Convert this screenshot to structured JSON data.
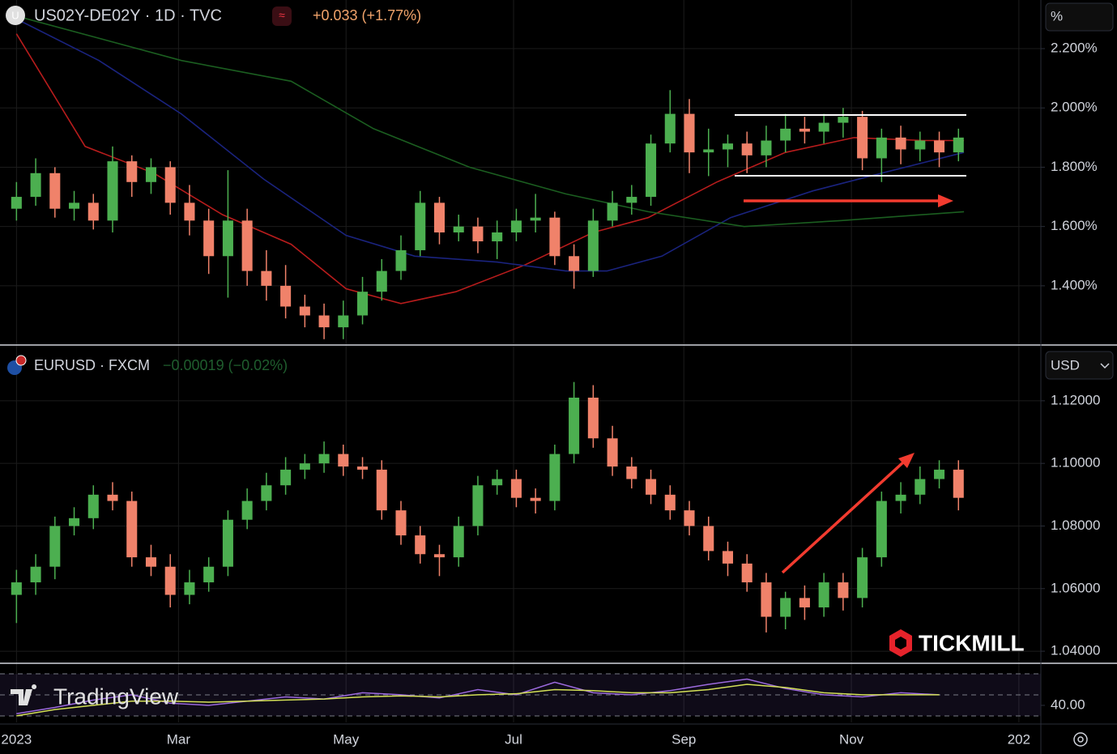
{
  "chart_data": [
    {
      "type": "candlestick",
      "title": "US02Y-DE02Y · 1D · TVC",
      "change": "+0.033 (+1.77%)",
      "unit_label": "%",
      "up_color": "#4caf50",
      "down_color": "#f0826a",
      "grid": true,
      "xlim": [
        -6,
        373
      ],
      "ylim": [
        1.203,
        2.364
      ],
      "yticks": [
        {
          "value": 2.2,
          "label": "2.200%"
        },
        {
          "value": 2.0,
          "label": "2.000%"
        },
        {
          "value": 1.8,
          "label": "1.800%"
        },
        {
          "value": 1.6,
          "label": "1.600%"
        },
        {
          "value": 1.4,
          "label": "1.400%"
        }
      ],
      "x": [
        0,
        7,
        14,
        21,
        28,
        35,
        42,
        49,
        56,
        63,
        70,
        77,
        84,
        91,
        98,
        105,
        112,
        119,
        126,
        133,
        140,
        147,
        154,
        161,
        168,
        175,
        182,
        189,
        196,
        203,
        210,
        217,
        224,
        231,
        238,
        245,
        252,
        259,
        266,
        273,
        280,
        287,
        294,
        301,
        308,
        315,
        322,
        329,
        336,
        343
      ],
      "open": [
        1.66,
        1.7,
        1.78,
        1.66,
        1.68,
        1.62,
        1.82,
        1.75,
        1.8,
        1.68,
        1.62,
        1.5,
        1.62,
        1.45,
        1.4,
        1.33,
        1.3,
        1.26,
        1.3,
        1.38,
        1.45,
        1.52,
        1.68,
        1.58,
        1.6,
        1.55,
        1.58,
        1.62,
        1.63,
        1.5,
        1.45,
        1.62,
        1.68,
        1.7,
        1.88,
        1.98,
        1.85,
        1.86,
        1.88,
        1.84,
        1.89,
        1.93,
        1.92,
        1.95,
        1.97,
        1.83,
        1.9,
        1.86,
        1.89,
        1.85
      ],
      "high": [
        1.75,
        1.83,
        1.8,
        1.72,
        1.71,
        1.87,
        1.84,
        1.83,
        1.82,
        1.74,
        1.66,
        1.79,
        1.66,
        1.52,
        1.47,
        1.37,
        1.34,
        1.35,
        1.43,
        1.49,
        1.57,
        1.72,
        1.7,
        1.64,
        1.63,
        1.62,
        1.66,
        1.71,
        1.65,
        1.54,
        1.66,
        1.72,
        1.74,
        1.91,
        2.06,
        2.03,
        1.93,
        1.91,
        1.92,
        1.94,
        1.98,
        1.97,
        1.98,
        2.0,
        1.99,
        1.93,
        1.94,
        1.92,
        1.92,
        1.93
      ],
      "low": [
        1.62,
        1.67,
        1.63,
        1.62,
        1.59,
        1.58,
        1.7,
        1.71,
        1.64,
        1.57,
        1.44,
        1.36,
        1.4,
        1.35,
        1.29,
        1.26,
        1.22,
        1.22,
        1.27,
        1.35,
        1.42,
        1.5,
        1.54,
        1.55,
        1.51,
        1.49,
        1.55,
        1.58,
        1.47,
        1.39,
        1.43,
        1.6,
        1.64,
        1.67,
        1.85,
        1.78,
        1.77,
        1.8,
        1.78,
        1.8,
        1.85,
        1.88,
        1.88,
        1.9,
        1.79,
        1.75,
        1.81,
        1.82,
        1.8,
        1.82
      ],
      "close": [
        1.7,
        1.78,
        1.66,
        1.68,
        1.62,
        1.82,
        1.75,
        1.8,
        1.68,
        1.62,
        1.5,
        1.62,
        1.45,
        1.4,
        1.33,
        1.3,
        1.26,
        1.3,
        1.38,
        1.45,
        1.52,
        1.68,
        1.58,
        1.6,
        1.55,
        1.58,
        1.62,
        1.63,
        1.5,
        1.45,
        1.62,
        1.68,
        1.7,
        1.88,
        1.98,
        1.85,
        1.86,
        1.88,
        1.84,
        1.89,
        1.93,
        1.92,
        1.95,
        1.97,
        1.83,
        1.9,
        1.86,
        1.89,
        1.85,
        1.9
      ],
      "lines": [
        {
          "color": "#b71c1c",
          "x": [
            0,
            25,
            50,
            75,
            100,
            120,
            140,
            160,
            185,
            210,
            230,
            255,
            280,
            305,
            330,
            345
          ],
          "values": [
            2.25,
            1.87,
            1.78,
            1.64,
            1.54,
            1.39,
            1.34,
            1.38,
            1.47,
            1.58,
            1.63,
            1.75,
            1.85,
            1.9,
            1.89,
            1.89
          ]
        },
        {
          "color": "#1a237e",
          "x": [
            0,
            30,
            60,
            90,
            120,
            145,
            175,
            200,
            215,
            235,
            260,
            290,
            315,
            345
          ],
          "values": [
            2.3,
            2.16,
            1.98,
            1.76,
            1.57,
            1.5,
            1.48,
            1.45,
            1.45,
            1.5,
            1.63,
            1.72,
            1.78,
            1.85
          ]
        },
        {
          "color": "#1b5e20",
          "x": [
            0,
            60,
            100,
            130,
            165,
            200,
            230,
            265,
            300,
            345
          ],
          "values": [
            2.31,
            2.16,
            2.09,
            1.93,
            1.8,
            1.71,
            1.65,
            1.6,
            1.62,
            1.65
          ]
        }
      ]
    },
    {
      "type": "candlestick",
      "title": "EURUSD · FXCM",
      "change": "−0.00019 (−0.02%)",
      "unit_label": "USD",
      "up_color": "#4caf50",
      "down_color": "#f0826a",
      "grid": true,
      "xlim": [
        -6,
        373
      ],
      "ylim": [
        1.0364,
        1.1373
      ],
      "yticks": [
        {
          "value": 1.12,
          "label": "1.12000"
        },
        {
          "value": 1.1,
          "label": "1.10000"
        },
        {
          "value": 1.08,
          "label": "1.08000"
        },
        {
          "value": 1.06,
          "label": "1.06000"
        },
        {
          "value": 1.04,
          "label": "1.04000"
        }
      ],
      "x": [
        0,
        7,
        14,
        21,
        28,
        35,
        42,
        49,
        56,
        63,
        70,
        77,
        84,
        91,
        98,
        105,
        112,
        119,
        126,
        133,
        140,
        147,
        154,
        161,
        168,
        175,
        182,
        189,
        196,
        203,
        210,
        217,
        224,
        231,
        238,
        245,
        252,
        259,
        266,
        273,
        280,
        287,
        294,
        301,
        308,
        315,
        322,
        329,
        336,
        343
      ],
      "open": [
        1.058,
        1.062,
        1.067,
        1.08,
        1.0825,
        1.09,
        1.088,
        1.07,
        1.067,
        1.058,
        1.062,
        1.067,
        1.082,
        1.088,
        1.093,
        1.098,
        1.1,
        1.103,
        1.099,
        1.098,
        1.085,
        1.077,
        1.071,
        1.07,
        1.08,
        1.093,
        1.095,
        1.089,
        1.088,
        1.103,
        1.121,
        1.108,
        1.099,
        1.095,
        1.09,
        1.085,
        1.08,
        1.072,
        1.068,
        1.062,
        1.051,
        1.057,
        1.054,
        1.062,
        1.057,
        1.07,
        1.088,
        1.09,
        1.095,
        1.098
      ],
      "high": [
        1.066,
        1.071,
        1.083,
        1.086,
        1.093,
        1.094,
        1.091,
        1.074,
        1.071,
        1.066,
        1.07,
        1.085,
        1.092,
        1.097,
        1.102,
        1.103,
        1.107,
        1.106,
        1.102,
        1.101,
        1.088,
        1.08,
        1.074,
        1.083,
        1.096,
        1.098,
        1.098,
        1.092,
        1.106,
        1.126,
        1.125,
        1.112,
        1.102,
        1.098,
        1.093,
        1.088,
        1.083,
        1.075,
        1.071,
        1.065,
        1.059,
        1.061,
        1.065,
        1.065,
        1.073,
        1.091,
        1.094,
        1.099,
        1.101,
        1.101
      ],
      "low": [
        1.049,
        1.058,
        1.063,
        1.077,
        1.079,
        1.085,
        1.067,
        1.064,
        1.054,
        1.055,
        1.059,
        1.064,
        1.079,
        1.085,
        1.09,
        1.095,
        1.097,
        1.096,
        1.095,
        1.082,
        1.074,
        1.068,
        1.064,
        1.067,
        1.077,
        1.09,
        1.086,
        1.084,
        1.085,
        1.1,
        1.105,
        1.096,
        1.092,
        1.087,
        1.082,
        1.077,
        1.069,
        1.064,
        1.059,
        1.046,
        1.047,
        1.05,
        1.051,
        1.053,
        1.054,
        1.067,
        1.084,
        1.087,
        1.092,
        1.085
      ],
      "close": [
        1.062,
        1.067,
        1.08,
        1.0825,
        1.09,
        1.088,
        1.07,
        1.067,
        1.058,
        1.062,
        1.067,
        1.082,
        1.088,
        1.093,
        1.098,
        1.1,
        1.103,
        1.099,
        1.098,
        1.085,
        1.077,
        1.071,
        1.07,
        1.08,
        1.093,
        1.095,
        1.089,
        1.088,
        1.103,
        1.121,
        1.108,
        1.099,
        1.095,
        1.09,
        1.085,
        1.08,
        1.072,
        1.068,
        1.062,
        1.051,
        1.057,
        1.054,
        1.062,
        1.057,
        1.07,
        1.088,
        1.09,
        1.095,
        1.098,
        1.089
      ]
    },
    {
      "type": "line",
      "grid": true,
      "xlim": [
        -6,
        373
      ],
      "ylim": [
        23.8,
        79.2
      ],
      "yticks": [
        {
          "value": 40,
          "label": "40.00"
        }
      ],
      "levels": [
        70,
        50,
        30
      ],
      "xticks": [
        {
          "value": 0,
          "label": "2023"
        },
        {
          "value": 59,
          "label": "Mar"
        },
        {
          "value": 120,
          "label": "May"
        },
        {
          "value": 181,
          "label": "Jul"
        },
        {
          "value": 243,
          "label": "Sep"
        },
        {
          "value": 304,
          "label": "Nov"
        },
        {
          "value": 365,
          "label": "202"
        }
      ],
      "series": [
        {
          "color": "#9c6ade",
          "x": [
            0,
            14,
            28,
            42,
            56,
            70,
            84,
            98,
            112,
            126,
            140,
            154,
            168,
            182,
            196,
            210,
            224,
            238,
            252,
            266,
            280,
            294,
            308,
            322,
            336
          ],
          "values": [
            32,
            38,
            45,
            50,
            42,
            40,
            44,
            48,
            46,
            52,
            50,
            47,
            55,
            50,
            62,
            52,
            50,
            54,
            60,
            65,
            56,
            50,
            48,
            52,
            50
          ]
        },
        {
          "color": "#d4e157",
          "x": [
            0,
            14,
            28,
            42,
            56,
            70,
            84,
            98,
            112,
            126,
            140,
            154,
            168,
            182,
            196,
            210,
            224,
            238,
            252,
            266,
            280,
            294,
            308,
            322,
            336
          ],
          "values": [
            30,
            36,
            40,
            44,
            44,
            43,
            44,
            45,
            46,
            48,
            49,
            48,
            50,
            51,
            55,
            54,
            52,
            52,
            55,
            60,
            57,
            52,
            50,
            50,
            50
          ]
        }
      ]
    }
  ],
  "branding": {
    "tickmill": "TICKMILL",
    "tradingview": "TradingView"
  }
}
